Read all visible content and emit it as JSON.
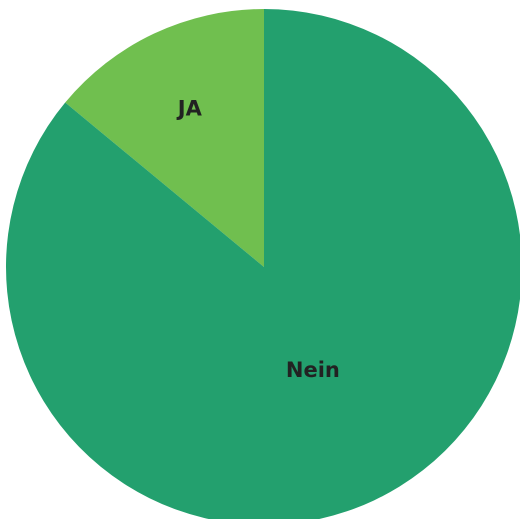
{
  "chart_data": {
    "type": "pie",
    "categories": [
      "JA",
      "Nein"
    ],
    "values": [
      14,
      86
    ],
    "colors": [
      "#70bf4f",
      "#23a06e"
    ]
  }
}
